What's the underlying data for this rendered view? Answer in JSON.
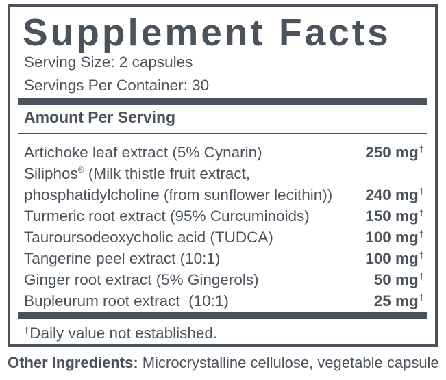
{
  "title": "Supplement Facts",
  "serving_size": "Serving Size: 2 capsules",
  "servings_per_container": "Servings Per Container: 30",
  "amount_per_serving": "Amount Per Serving",
  "dagger_symbol": "†",
  "registered_symbol": "®",
  "ingredients": [
    {
      "name": "Artichoke leaf extract (5% Cynarin)",
      "amount": "250 mg"
    },
    {
      "name_before_mark": "Siliphos",
      "name_after_mark": " (Milk thistle fruit extract,"
    },
    {
      "name": "phosphatidylcholine (from sunflower lecithin))",
      "amount": "240 mg"
    },
    {
      "name": "Turmeric root extract (95% Curcuminoids)",
      "amount": "150 mg"
    },
    {
      "name": "Tauroursodeoxycholic acid (TUDCA)",
      "amount": "100 mg"
    },
    {
      "name": "Tangerine peel extract (10:1)",
      "amount": "100 mg"
    },
    {
      "name": "Ginger root extract (5% Gingerols)",
      "amount": "50 mg"
    },
    {
      "name": "Bupleurum root extract  (10:1)",
      "amount": "25 mg"
    }
  ],
  "footnote": "Daily value not established.",
  "other_ingredients": {
    "label": "Other Ingredients:",
    "text": " Microcrystalline cellulose, vegetable capsule"
  }
}
